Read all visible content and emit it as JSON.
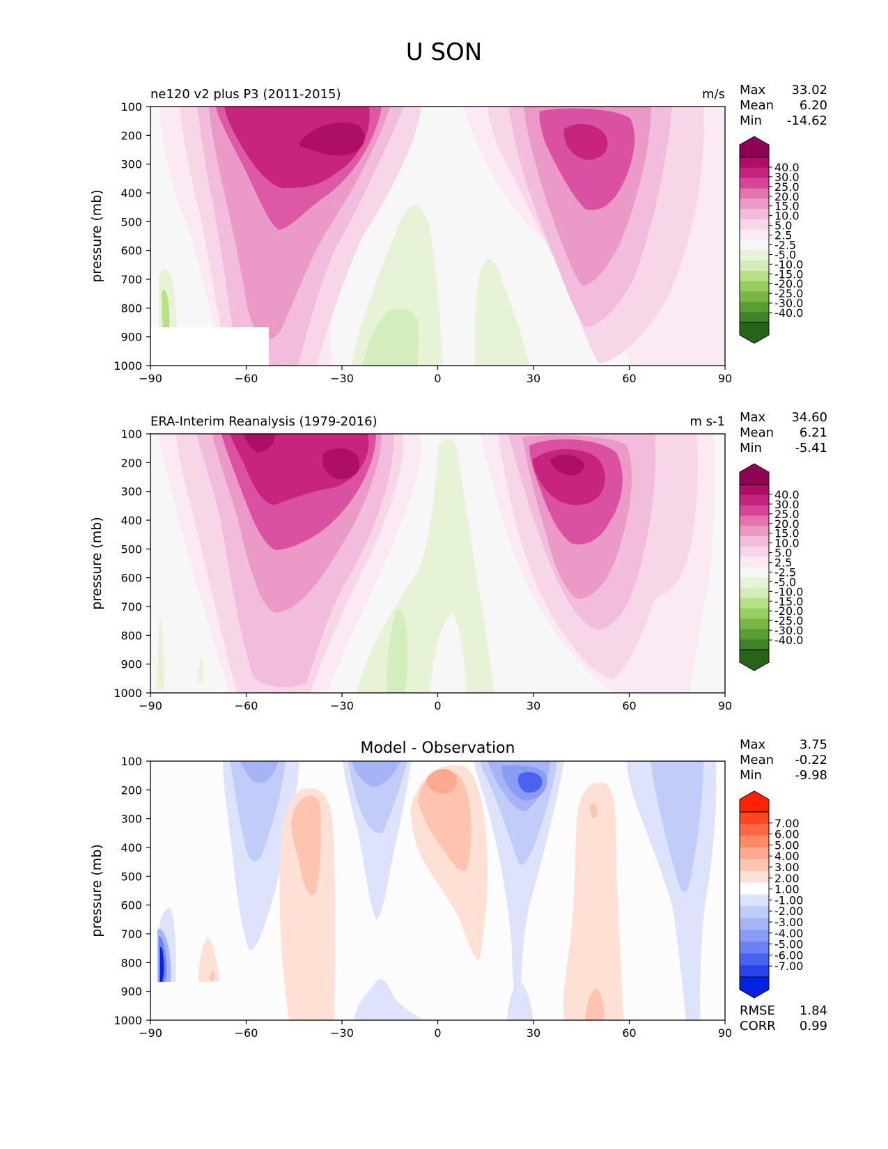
{
  "figure": {
    "title": "U SON"
  },
  "chart_data": [
    {
      "type": "heatmap",
      "panel": "model",
      "title_left": "ne120 v2 plus P3 (2011-2015)",
      "title_center": "",
      "units": "m/s",
      "ylabel": "pressure (mb)",
      "xlabel": "",
      "xlim": [
        -90,
        90
      ],
      "ylim": [
        1000,
        100
      ],
      "x_ticks": [
        "−90",
        "−60",
        "−30",
        "0",
        "30",
        "60",
        "90"
      ],
      "y_ticks": [
        "100",
        "200",
        "300",
        "400",
        "500",
        "600",
        "700",
        "800",
        "900",
        "1000"
      ],
      "stats": [
        {
          "label": "Max",
          "value": "33.02"
        },
        {
          "label": "Mean",
          "value": "6.20"
        },
        {
          "label": "Min",
          "value": "-14.62"
        }
      ],
      "colorbar_levels": [
        "40.0",
        "30.0",
        "25.0",
        "20.0",
        "15.0",
        "10.0",
        "5.0",
        "2.5",
        "-2.5",
        "-5.0",
        "-10.0",
        "-15.0",
        "-20.0",
        "-25.0",
        "-30.0",
        "-40.0"
      ],
      "colorbar_colors": [
        "#8e0152",
        "#ad0f66",
        "#c7247d",
        "#d8449a",
        "#e474ad",
        "#eb99c6",
        "#f2bcdc",
        "#f7d6e8",
        "#fbeaf3",
        "#f7f7f7",
        "#e6f3d6",
        "#d4edbc",
        "#b8e187",
        "#98cd61",
        "#79b643",
        "#5a9e33",
        "#3f8328",
        "#276419"
      ],
      "features": [
        {
          "kind": "jet",
          "lat": -45,
          "p": 220,
          "peak": 33,
          "sign": "westerly"
        },
        {
          "kind": "jet",
          "lat": 45,
          "p": 210,
          "peak": 28,
          "sign": "westerly"
        },
        {
          "kind": "easterly",
          "lat": -12,
          "p": 900,
          "peak": -8
        },
        {
          "kind": "easterly",
          "lat": -87,
          "p": 800,
          "peak": -14.6
        }
      ]
    },
    {
      "type": "heatmap",
      "panel": "observation",
      "title_left": "ERA-Interim Reanalysis (1979-2016)",
      "title_center": "",
      "units": "m s-1",
      "ylabel": "pressure (mb)",
      "xlabel": "",
      "xlim": [
        -90,
        90
      ],
      "ylim": [
        1000,
        100
      ],
      "x_ticks": [
        "−90",
        "−60",
        "−30",
        "0",
        "30",
        "60",
        "90"
      ],
      "y_ticks": [
        "100",
        "200",
        "300",
        "400",
        "500",
        "600",
        "700",
        "800",
        "900",
        "1000"
      ],
      "stats": [
        {
          "label": "Max",
          "value": "34.60"
        },
        {
          "label": "Mean",
          "value": "6.21"
        },
        {
          "label": "Min",
          "value": "-5.41"
        }
      ],
      "colorbar_levels": [
        "40.0",
        "30.0",
        "25.0",
        "20.0",
        "15.0",
        "10.0",
        "5.0",
        "2.5",
        "-2.5",
        "-5.0",
        "-10.0",
        "-15.0",
        "-20.0",
        "-25.0",
        "-30.0",
        "-40.0"
      ],
      "colorbar_colors": [
        "#8e0152",
        "#ad0f66",
        "#c7247d",
        "#d8449a",
        "#e474ad",
        "#eb99c6",
        "#f2bcdc",
        "#f7d6e8",
        "#fbeaf3",
        "#f7f7f7",
        "#e6f3d6",
        "#d4edbc",
        "#b8e187",
        "#98cd61",
        "#79b643",
        "#5a9e33",
        "#3f8328",
        "#276419"
      ],
      "features": [
        {
          "kind": "jet",
          "lat": -50,
          "p": 200,
          "peak": 34.6,
          "sign": "westerly"
        },
        {
          "kind": "jet",
          "lat": 40,
          "p": 200,
          "peak": 27,
          "sign": "westerly"
        },
        {
          "kind": "easterly",
          "lat": -12,
          "p": 900,
          "peak": -5.4
        }
      ]
    },
    {
      "type": "heatmap",
      "panel": "difference",
      "title_left": "",
      "title_center": "Model - Observation",
      "units": "",
      "ylabel": "pressure (mb)",
      "xlabel": "",
      "xlim": [
        -90,
        90
      ],
      "ylim": [
        1000,
        100
      ],
      "x_ticks": [
        "−90",
        "−60",
        "−30",
        "0",
        "30",
        "60",
        "90"
      ],
      "y_ticks": [
        "100",
        "200",
        "300",
        "400",
        "500",
        "600",
        "700",
        "800",
        "900",
        "1000"
      ],
      "stats": [
        {
          "label": "Max",
          "value": "3.75"
        },
        {
          "label": "Mean",
          "value": "-0.22"
        },
        {
          "label": "Min",
          "value": "-9.98"
        }
      ],
      "bottom_stats": [
        {
          "label": "RMSE",
          "value": "1.84"
        },
        {
          "label": "CORR",
          "value": "0.99"
        }
      ],
      "colorbar_levels": [
        "7.00",
        "6.00",
        "5.00",
        "4.00",
        "3.00",
        "2.00",
        "1.00",
        "-1.00",
        "-2.00",
        "-3.00",
        "-4.00",
        "-5.00",
        "-6.00",
        "-7.00"
      ],
      "colorbar_colors": [
        "#ff2200",
        "#ff4422",
        "#ff6644",
        "#ff8866",
        "#ffaa90",
        "#ffc4b0",
        "#ffe0d4",
        "#ffffff",
        "#dde3fb",
        "#c2ccf8",
        "#a6b4f6",
        "#8a9cf4",
        "#6b80f2",
        "#4a62f0",
        "#2a44ec",
        "#0022e6"
      ],
      "features": [
        {
          "kind": "bias",
          "lat": -56,
          "p": 200,
          "value": -3
        },
        {
          "kind": "bias",
          "lat": -38,
          "p": 300,
          "value": 2.5
        },
        {
          "kind": "bias",
          "lat": -18,
          "p": 180,
          "value": -4
        },
        {
          "kind": "bias",
          "lat": 2,
          "p": 180,
          "value": 3.5
        },
        {
          "kind": "bias",
          "lat": 27,
          "p": 190,
          "value": -6.5
        },
        {
          "kind": "bias",
          "lat": 48,
          "p": 300,
          "value": 2
        },
        {
          "kind": "bias",
          "lat": 76,
          "p": 300,
          "value": -2
        },
        {
          "kind": "bias",
          "lat": -86,
          "p": 800,
          "value": -9.98
        },
        {
          "kind": "bias",
          "lat": -70,
          "p": 820,
          "value": 2
        }
      ]
    }
  ]
}
